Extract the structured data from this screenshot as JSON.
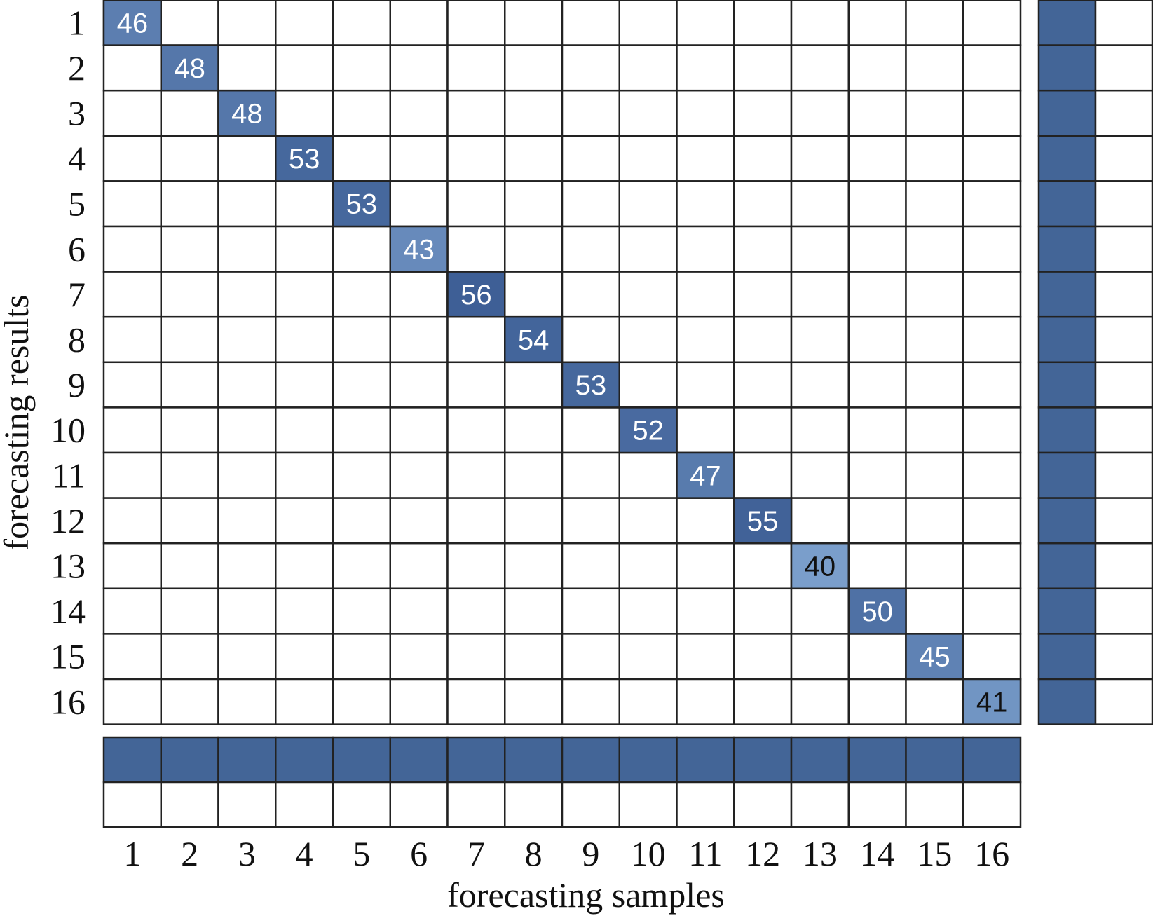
{
  "chart_data": {
    "type": "heatmap",
    "title": "",
    "xlabel": "forecasting samples",
    "ylabel": "forecasting results",
    "x_categories": [
      "1",
      "2",
      "3",
      "4",
      "5",
      "6",
      "7",
      "8",
      "9",
      "10",
      "11",
      "12",
      "13",
      "14",
      "15",
      "16"
    ],
    "y_categories": [
      "1",
      "2",
      "3",
      "4",
      "5",
      "6",
      "7",
      "8",
      "9",
      "10",
      "11",
      "12",
      "13",
      "14",
      "15",
      "16"
    ],
    "cells": [
      {
        "row": 1,
        "col": 1,
        "value": 46
      },
      {
        "row": 2,
        "col": 2,
        "value": 48
      },
      {
        "row": 3,
        "col": 3,
        "value": 48
      },
      {
        "row": 4,
        "col": 4,
        "value": 53
      },
      {
        "row": 5,
        "col": 5,
        "value": 53
      },
      {
        "row": 6,
        "col": 6,
        "value": 43
      },
      {
        "row": 7,
        "col": 7,
        "value": 56
      },
      {
        "row": 8,
        "col": 8,
        "value": 54
      },
      {
        "row": 9,
        "col": 9,
        "value": 53
      },
      {
        "row": 10,
        "col": 10,
        "value": 52
      },
      {
        "row": 11,
        "col": 11,
        "value": 47
      },
      {
        "row": 12,
        "col": 12,
        "value": 55
      },
      {
        "row": 13,
        "col": 13,
        "value": 40
      },
      {
        "row": 14,
        "col": 14,
        "value": 50
      },
      {
        "row": 15,
        "col": 15,
        "value": 45
      },
      {
        "row": 16,
        "col": 16,
        "value": 41
      }
    ],
    "row_summary": {
      "columns": 2,
      "filled_fraction": [
        1,
        1,
        1,
        1,
        1,
        1,
        1,
        1,
        1,
        1,
        1,
        1,
        1,
        1,
        1,
        1
      ]
    },
    "column_summary": {
      "rows": 2,
      "filled_fraction": [
        1,
        1,
        1,
        1,
        1,
        1,
        1,
        1,
        1,
        1,
        1,
        1,
        1,
        1,
        1,
        1
      ]
    },
    "colors": {
      "high": "#3e5f96",
      "low": "#7a9ecb",
      "summary_fill": "#436597",
      "grid_line": "#222222",
      "light_text": "#ffffff",
      "dark_text": "#111111"
    },
    "grid": true,
    "legend": "none"
  }
}
